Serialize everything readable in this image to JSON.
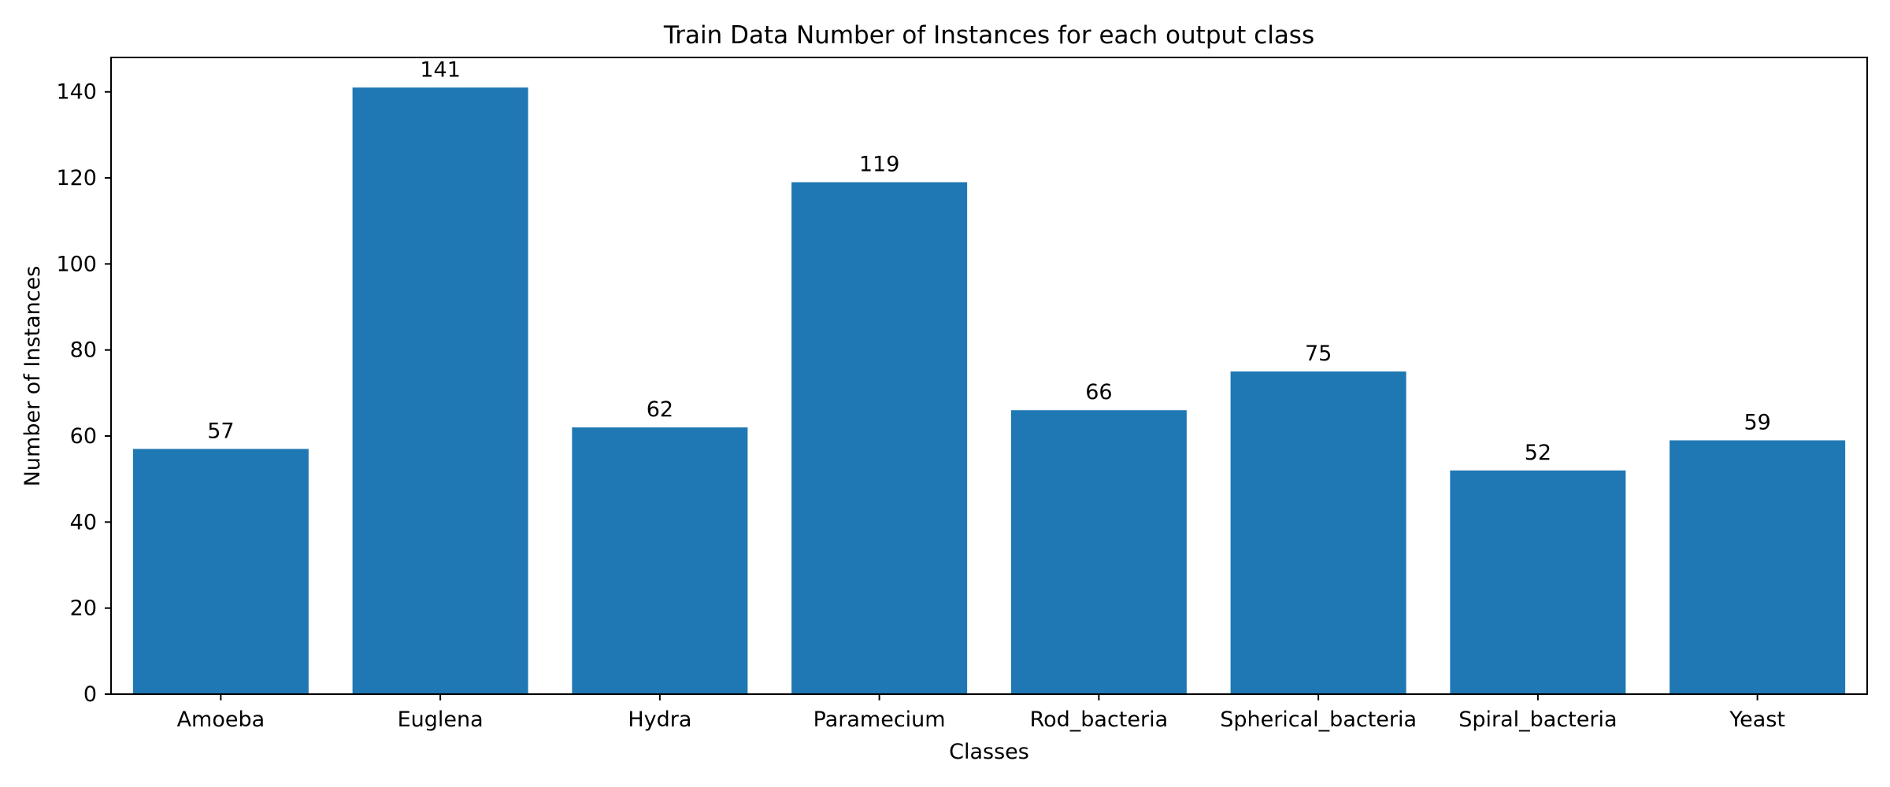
{
  "chart_data": {
    "type": "bar",
    "title": "Train Data Number of Instances for each output class",
    "xlabel": "Classes",
    "ylabel": "Number of Instances",
    "categories": [
      "Amoeba",
      "Euglena",
      "Hydra",
      "Paramecium",
      "Rod_bacteria",
      "Spherical_bacteria",
      "Spiral_bacteria",
      "Yeast"
    ],
    "values": [
      57,
      141,
      62,
      119,
      66,
      75,
      52,
      59
    ],
    "data_labels": [
      "57",
      "141",
      "62",
      "119",
      "66",
      "75",
      "52",
      "59"
    ],
    "yticks": [
      0,
      20,
      40,
      60,
      80,
      100,
      120,
      140
    ],
    "ylim": [
      0,
      148
    ],
    "grid": false,
    "legend": "none",
    "colors": {
      "bar": "#1f77b4",
      "axis": "#000000",
      "text": "#000000",
      "background": "#ffffff"
    }
  }
}
